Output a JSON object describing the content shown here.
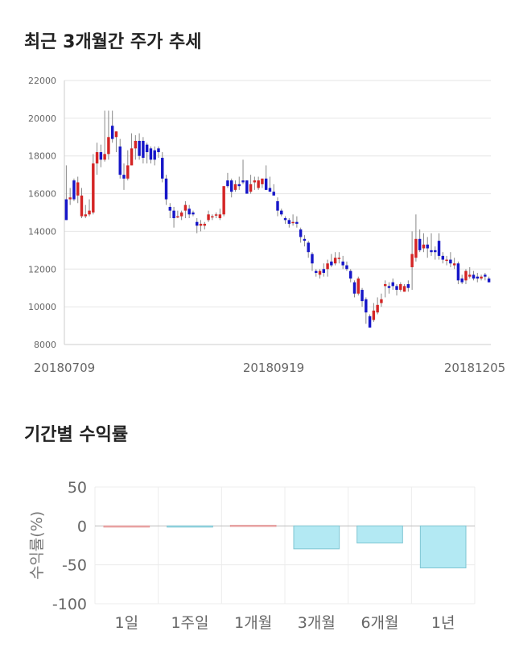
{
  "titles": {
    "price_trend": "최근 3개월간 주가 추세",
    "period_returns": "기간별 수익률"
  },
  "colors": {
    "up": "#d42525",
    "down": "#1616c8",
    "wick": "#888888",
    "bar_negative": "#b3e9f3",
    "bar_negative_stroke": "#7fc6d3",
    "bar_positive": "#f6b9b9"
  },
  "chart_data": [
    {
      "type": "candlestick",
      "title": "최근 3개월간 주가 추세",
      "ylim": [
        8000,
        22000
      ],
      "y_ticks": [
        "22000",
        "20000",
        "18000",
        "16000",
        "14000",
        "12000",
        "10000",
        "8000"
      ],
      "x_labels": [
        "20180709",
        "20180919",
        "20181205"
      ],
      "grid": true,
      "candles": [
        [
          15700,
          14600,
          17500,
          14600
        ],
        [
          15700,
          15800,
          16300,
          15400
        ],
        [
          16700,
          15700,
          16800,
          15600
        ],
        [
          15900,
          16600,
          16900,
          15500
        ],
        [
          14800,
          15900,
          16300,
          14700
        ],
        [
          14800,
          14900,
          15400,
          14700
        ],
        [
          14900,
          15100,
          15700,
          14800
        ],
        [
          15000,
          17600,
          18100,
          14900
        ],
        [
          17600,
          18200,
          18700,
          17000
        ],
        [
          18200,
          17800,
          18600,
          17400
        ],
        [
          17800,
          18100,
          20400,
          17700
        ],
        [
          18100,
          19000,
          20400,
          17800
        ],
        [
          19600,
          18900,
          20400,
          18700
        ],
        [
          19000,
          19300,
          19300,
          18200
        ],
        [
          18500,
          17000,
          18900,
          16800
        ],
        [
          17000,
          16800,
          17600,
          16200
        ],
        [
          16800,
          17500,
          18300,
          16700
        ],
        [
          17500,
          18400,
          19200,
          17500
        ],
        [
          18400,
          18800,
          19100,
          17800
        ],
        [
          18800,
          18000,
          19200,
          17800
        ],
        [
          18800,
          17900,
          19000,
          17600
        ],
        [
          18600,
          18200,
          18700,
          17600
        ],
        [
          18400,
          17800,
          18500,
          17600
        ],
        [
          18300,
          17800,
          18500,
          17500
        ],
        [
          18400,
          18200,
          18500,
          17900
        ],
        [
          17900,
          16800,
          18200,
          16600
        ],
        [
          16800,
          15700,
          17000,
          15400
        ],
        [
          15300,
          15100,
          15500,
          14700
        ],
        [
          15100,
          14700,
          15300,
          14200
        ],
        [
          14800,
          14800,
          15100,
          14700
        ],
        [
          14800,
          15000,
          15100,
          14600
        ],
        [
          15100,
          15400,
          15600,
          14700
        ],
        [
          15200,
          14900,
          15400,
          14700
        ],
        [
          15000,
          14900,
          15100,
          14800
        ],
        [
          14500,
          14300,
          14700,
          13900
        ],
        [
          14300,
          14400,
          14600,
          14000
        ],
        [
          14300,
          14400,
          14500,
          14100
        ],
        [
          14600,
          14900,
          15100,
          14500
        ],
        [
          14800,
          14800,
          14900,
          14600
        ],
        [
          14900,
          14900,
          15000,
          14700
        ],
        [
          14700,
          14900,
          15200,
          14600
        ],
        [
          14900,
          16400,
          16400,
          14800
        ],
        [
          16700,
          16400,
          17100,
          16300
        ],
        [
          16700,
          16100,
          16800,
          15800
        ],
        [
          16200,
          16500,
          16700,
          16100
        ],
        [
          16500,
          16400,
          16900,
          16200
        ],
        [
          16700,
          16600,
          17800,
          16500
        ],
        [
          16700,
          16000,
          16700,
          16000
        ],
        [
          16100,
          16500,
          17000,
          16000
        ],
        [
          16600,
          16700,
          16900,
          16200
        ],
        [
          16300,
          16700,
          16900,
          16200
        ],
        [
          16500,
          16800,
          16800,
          16300
        ],
        [
          16800,
          16200,
          17500,
          16200
        ],
        [
          16300,
          16100,
          16900,
          16100
        ],
        [
          16100,
          15900,
          16500,
          15900
        ],
        [
          15600,
          15100,
          15800,
          14800
        ],
        [
          15100,
          14900,
          15200,
          14800
        ],
        [
          14700,
          14600,
          14800,
          14400
        ],
        [
          14600,
          14400,
          14700,
          14200
        ],
        [
          14500,
          14500,
          14900,
          14300
        ],
        [
          14500,
          14400,
          14800,
          14200
        ],
        [
          14100,
          13700,
          14200,
          13400
        ],
        [
          13600,
          13500,
          13800,
          13200
        ],
        [
          13400,
          12900,
          13500,
          12600
        ],
        [
          12800,
          12300,
          12900,
          11900
        ],
        [
          11900,
          11800,
          12000,
          11600
        ],
        [
          11700,
          11900,
          12000,
          11500
        ],
        [
          12000,
          11800,
          12300,
          11600
        ],
        [
          12000,
          12300,
          12500,
          11600
        ],
        [
          12400,
          12200,
          12800,
          12100
        ],
        [
          12300,
          12600,
          12900,
          12200
        ],
        [
          12600,
          12600,
          12900,
          12300
        ],
        [
          12400,
          12200,
          12700,
          12000
        ],
        [
          12200,
          12000,
          12400,
          11900
        ],
        [
          11900,
          11500,
          12000,
          11300
        ],
        [
          11300,
          10700,
          11400,
          10500
        ],
        [
          10700,
          11500,
          11600,
          10600
        ],
        [
          10900,
          10300,
          11000,
          10000
        ],
        [
          10400,
          9700,
          10500,
          9100
        ],
        [
          9500,
          8900,
          9600,
          8900
        ],
        [
          9300,
          9800,
          10200,
          9200
        ],
        [
          9700,
          10100,
          10500,
          9600
        ],
        [
          10200,
          10400,
          10700,
          10000
        ],
        [
          11100,
          11200,
          11400,
          10500
        ],
        [
          11100,
          11000,
          11300,
          10700
        ],
        [
          11300,
          11100,
          11500,
          10900
        ],
        [
          11100,
          10900,
          11200,
          10600
        ],
        [
          10900,
          11200,
          11300,
          10800
        ],
        [
          10800,
          11100,
          11200,
          10800
        ],
        [
          11200,
          11000,
          11400,
          10800
        ],
        [
          12100,
          12800,
          14000,
          10900
        ],
        [
          12600,
          13600,
          14900,
          12400
        ],
        [
          13600,
          13000,
          14100,
          12900
        ],
        [
          13100,
          13300,
          13900,
          12900
        ],
        [
          13300,
          13100,
          13700,
          12600
        ],
        [
          13000,
          12900,
          13900,
          12700
        ],
        [
          13000,
          12900,
          13200,
          12500
        ],
        [
          13500,
          12700,
          13900,
          12500
        ],
        [
          12700,
          12500,
          12900,
          12300
        ],
        [
          12500,
          12500,
          12700,
          12200
        ],
        [
          12500,
          12300,
          12900,
          12100
        ],
        [
          12200,
          12300,
          12600,
          12000
        ],
        [
          12300,
          11400,
          12400,
          11200
        ],
        [
          11500,
          11300,
          11700,
          11200
        ],
        [
          11400,
          11900,
          12000,
          11200
        ],
        [
          11600,
          11700,
          12100,
          11500
        ],
        [
          11700,
          11500,
          11900,
          11400
        ],
        [
          11600,
          11500,
          11800,
          11300
        ],
        [
          11500,
          11600,
          11700,
          11400
        ],
        [
          11700,
          11600,
          11800,
          11400
        ],
        [
          11500,
          11300,
          11600,
          11300
        ]
      ]
    },
    {
      "type": "bar",
      "title": "기간별 수익률",
      "ylabel": "수익률(%)",
      "categories": [
        "1일",
        "1주일",
        "1개월",
        "3개월",
        "6개월",
        "1년"
      ],
      "values": [
        0,
        -1.5,
        0.8,
        -29.5,
        -22,
        -54
      ],
      "ylim": [
        -100,
        50
      ],
      "y_ticks": [
        "50",
        "0",
        "-50",
        "-100"
      ],
      "grid": true
    }
  ]
}
